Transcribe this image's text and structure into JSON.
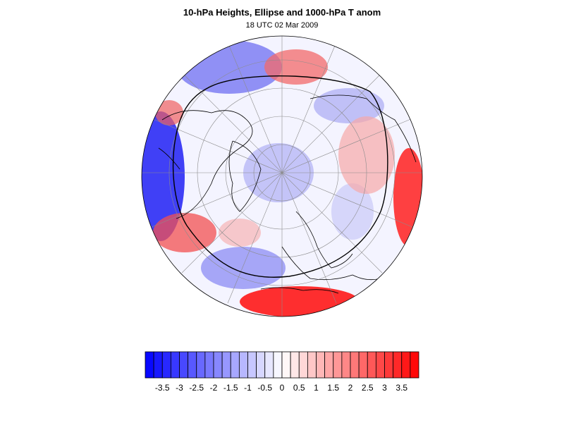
{
  "header": {
    "title": "10-hPa Heights, Ellipse and 1000-hPa T anom",
    "subtitle": "18 UTC 02 Mar 2009"
  },
  "map": {
    "projection": "orthographic-north-polar",
    "colors": {
      "negative": "#0000ff",
      "neutral": "#ffffff",
      "positive": "#ff0000",
      "contour": "#000000",
      "grid": "#8c8c8c"
    },
    "overlays": [
      "coastlines-icon",
      "lat-lon-grid-icon",
      "vortex-ellipse-icon"
    ]
  },
  "colorbar": {
    "min": -4,
    "max": 4,
    "step": 0.25,
    "labels": [
      "-3.5",
      "-3",
      "-2.5",
      "-2",
      "-1.5",
      "-1",
      "-0.5",
      "0",
      "0.5",
      "1",
      "1.5",
      "2",
      "2.5",
      "3",
      "3.5"
    ],
    "label_values": [
      -3.5,
      -3,
      -2.5,
      -2,
      -1.5,
      -1,
      -0.5,
      0,
      0.5,
      1,
      1.5,
      2,
      2.5,
      3,
      3.5
    ]
  }
}
